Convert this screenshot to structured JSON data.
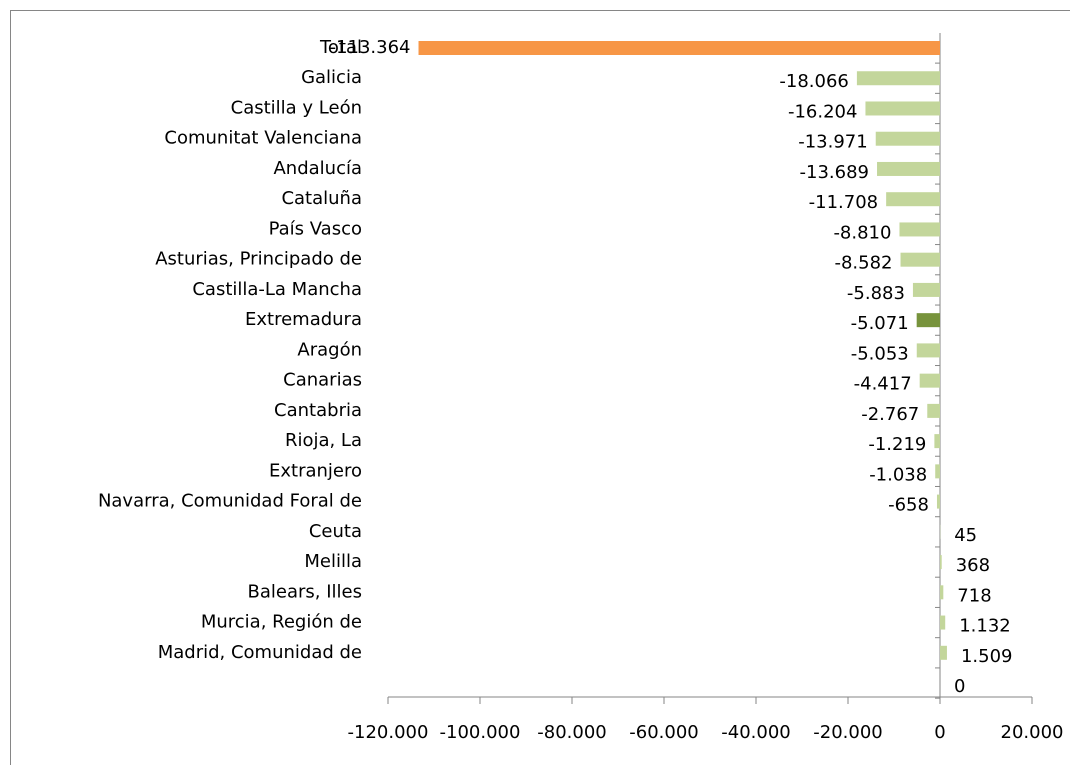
{
  "chart_data": {
    "type": "bar",
    "orientation": "horizontal",
    "categories": [
      "Total",
      "Galicia",
      "Castilla y León",
      "Comunitat Valenciana",
      "Andalucía",
      "Cataluña",
      "País Vasco",
      "Asturias, Principado de",
      "Castilla-La Mancha",
      "Extremadura",
      "Aragón",
      "Canarias",
      "Cantabria",
      "Rioja, La",
      "Extranjero",
      "Navarra, Comunidad Foral de",
      "Ceuta",
      "Melilla",
      "Balears, Illes",
      "Murcia, Región de",
      "Madrid, Comunidad de",
      null
    ],
    "values": [
      -113364,
      -18066,
      -16204,
      -13971,
      -13689,
      -11708,
      -8810,
      -8582,
      -5883,
      -5071,
      -5053,
      -4417,
      -2767,
      -1219,
      -1038,
      -658,
      45,
      368,
      718,
      1132,
      1509,
      0
    ],
    "value_labels": [
      "-113.364",
      "-18.066",
      "-16.204",
      "-13.971",
      "-13.689",
      "-11.708",
      "-8.810",
      "-8.582",
      "-5.883",
      "-5.071",
      "-5.053",
      "-4.417",
      "-2.767",
      "-1.219",
      "-1.038",
      "-658",
      "45",
      "368",
      "718",
      "1.132",
      "1.509",
      "0"
    ],
    "colors": [
      "#f79646",
      "#c3d69b",
      "#c3d69b",
      "#c3d69b",
      "#c3d69b",
      "#c3d69b",
      "#c3d69b",
      "#c3d69b",
      "#c3d69b",
      "#77933c",
      "#c3d69b",
      "#c3d69b",
      "#c3d69b",
      "#c3d69b",
      "#c3d69b",
      "#c3d69b",
      "#c3d69b",
      "#c3d69b",
      "#c3d69b",
      "#c3d69b",
      "#c3d69b",
      "#c3d69b"
    ],
    "xlim": [
      -120000,
      20000
    ],
    "xticks": [
      {
        "value": -120000,
        "label": "-120.000"
      },
      {
        "value": -100000,
        "label": "-100.000"
      },
      {
        "value": -80000,
        "label": "-80.000"
      },
      {
        "value": -60000,
        "label": "-60.000"
      },
      {
        "value": -40000,
        "label": "-40.000"
      },
      {
        "value": -20000,
        "label": "-20.000"
      },
      0,
      {
        "value": 20000,
        "label": "20.000"
      }
    ]
  }
}
